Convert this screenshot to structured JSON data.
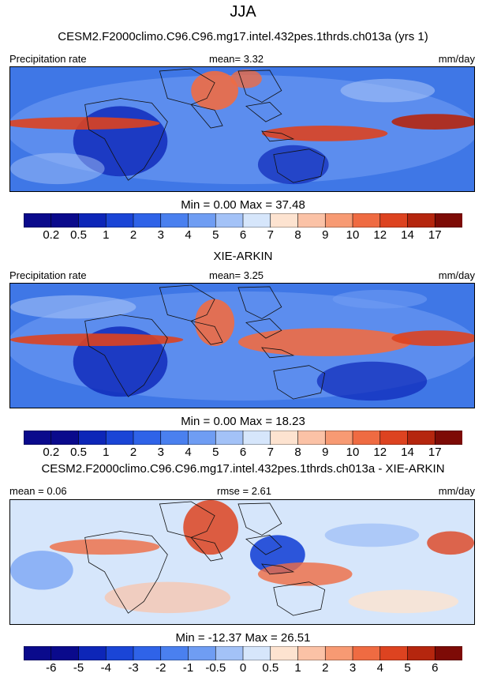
{
  "main_title": "JJA",
  "panels": [
    {
      "id": "p1",
      "title": "CESM2.F2000climo.C96.C96.mg17.intel.432pes.1thrds.ch013a (yrs 1)",
      "left_label": "Precipitation rate",
      "center_label": "mean=   3.32",
      "right_label": "mm/day",
      "minmax": "Min =   0.00 Max =  37.48",
      "colorbar": {
        "labels": [
          "0.2",
          "0.5",
          "1",
          "2",
          "3",
          "4",
          "5",
          "6",
          "7",
          "8",
          "9",
          "10",
          "12",
          "14",
          "17"
        ],
        "colors": [
          "#0a0a8c",
          "#0d26b8",
          "#1a45d6",
          "#2f63e8",
          "#4a80ef",
          "#6f9df3",
          "#a3c2f7",
          "#d6e6fb",
          "#fde3d0",
          "#fbc2a6",
          "#f79a73",
          "#ef6b42",
          "#dd4320",
          "#b5260e",
          "#7d0b06"
        ]
      }
    },
    {
      "id": "p2",
      "title": "XIE-ARKIN",
      "left_label": "Precipitation rate",
      "center_label": "mean=   3.25",
      "right_label": "mm/day",
      "minmax": "Min =   0.00 Max =  18.23",
      "colorbar": {
        "labels": [
          "0.2",
          "0.5",
          "1",
          "2",
          "3",
          "4",
          "5",
          "6",
          "7",
          "8",
          "9",
          "10",
          "12",
          "14",
          "17"
        ],
        "colors": [
          "#0a0a8c",
          "#0d26b8",
          "#1a45d6",
          "#2f63e8",
          "#4a80ef",
          "#6f9df3",
          "#a3c2f7",
          "#d6e6fb",
          "#fde3d0",
          "#fbc2a6",
          "#f79a73",
          "#ef6b42",
          "#dd4320",
          "#b5260e",
          "#7d0b06"
        ]
      }
    },
    {
      "id": "p3",
      "title": "CESM2.F2000climo.C96.C96.mg17.intel.432pes.1thrds.ch013a - XIE-ARKIN",
      "left_label": "mean =  0.06",
      "center_label": "rmse =  2.61",
      "right_label": "mm/day",
      "minmax": "Min = -12.37 Max =  26.51",
      "colorbar": {
        "labels": [
          "-6",
          "-5",
          "-4",
          "-3",
          "-2",
          "-1",
          "-0.5",
          "0",
          "0.5",
          "1",
          "2",
          "3",
          "4",
          "5",
          "6"
        ],
        "colors": [
          "#0a0a8c",
          "#0d26b8",
          "#1a45d6",
          "#2f63e8",
          "#4a80ef",
          "#6f9df3",
          "#a3c2f7",
          "#d6e6fb",
          "#fde3d0",
          "#fbc2a6",
          "#f79a73",
          "#ef6b42",
          "#dd4320",
          "#b5260e",
          "#7d0b06"
        ]
      }
    }
  ]
}
